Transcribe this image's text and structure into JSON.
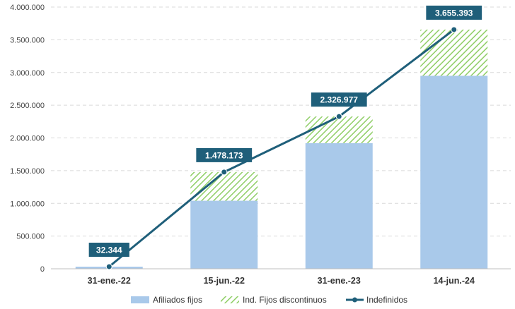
{
  "chart_data": {
    "type": "bar",
    "stacked": true,
    "categories": [
      "31-ene.-22",
      "15-jun.-22",
      "31-ene.-23",
      "14-jun.-24"
    ],
    "series": [
      {
        "name": "Afiliados fijos",
        "kind": "bar",
        "color": "#a9c9ea",
        "values": [
          32344,
          1040000,
          1920000,
          2950000
        ]
      },
      {
        "name": "Ind. Fijos discontinuos",
        "kind": "bar",
        "pattern": "hatched",
        "color": "#8fce66",
        "values": [
          0,
          438173,
          406977,
          705393
        ]
      },
      {
        "name": "Indefinidos",
        "kind": "line",
        "color": "#1f5f7a",
        "values": [
          32344,
          1478173,
          2326977,
          3655393
        ]
      }
    ],
    "data_labels": [
      "32.344",
      "1.478.173",
      "2.326.977",
      "3.655.393"
    ],
    "y_ticks": [
      "0",
      "500.000",
      "1.000.000",
      "1.500.000",
      "2.000.000",
      "2.500.000",
      "3.000.000",
      "3.500.000",
      "4.000.000"
    ],
    "ylim": [
      0,
      4000000
    ],
    "grid": true,
    "legend_position": "bottom"
  }
}
